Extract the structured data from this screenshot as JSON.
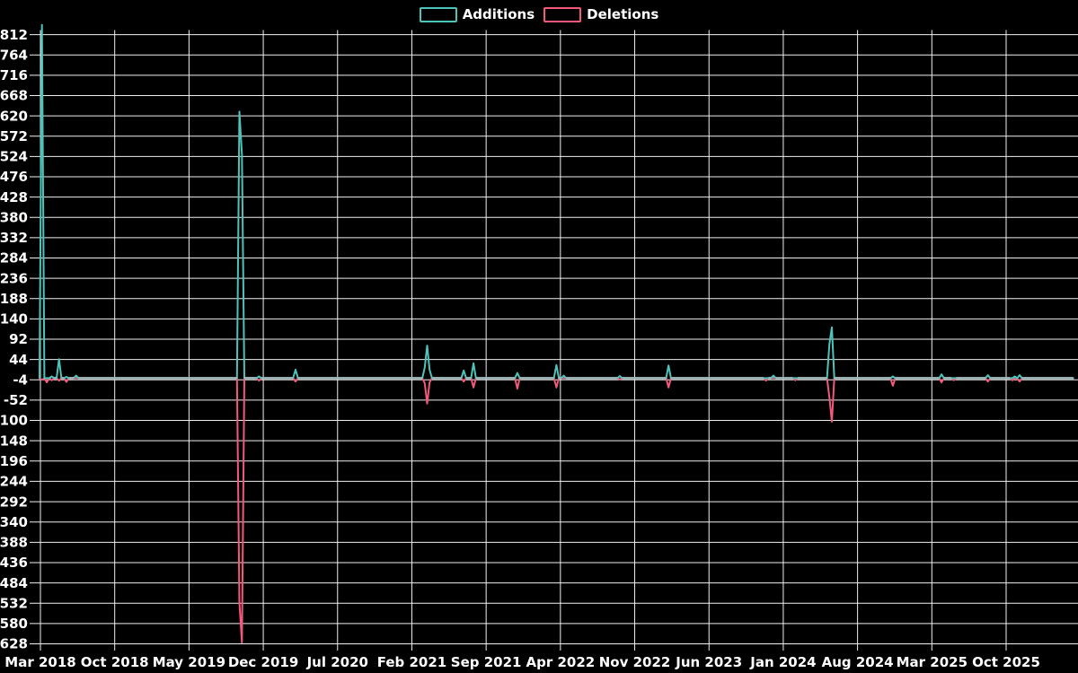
{
  "legend": {
    "items": [
      {
        "label": "Additions",
        "color": "#4cc4bc"
      },
      {
        "label": "Deletions",
        "color": "#f4587b"
      }
    ]
  },
  "chart_data": {
    "type": "line",
    "title": "",
    "xlabel": "",
    "ylabel": "",
    "legend_position": "top",
    "grid": true,
    "background_color": "#000000",
    "text_color": "#ffffff",
    "grid_color": "#f0f0f0",
    "zero_line_color": "#9fb8ba",
    "x_axis": {
      "start_date": "2018-03-04",
      "end_date": "2026-04-19",
      "tick_labels": [
        "Mar 2018",
        "Oct 2018",
        "May 2019",
        "Dec 2019",
        "Jul 2020",
        "Feb 2021",
        "Sep 2021",
        "Apr 2022",
        "Nov 2022",
        "Jun 2023",
        "Jan 2024",
        "Aug 2024",
        "Mar 2025",
        "Oct 2025"
      ]
    },
    "y_axis": {
      "min": -628,
      "max": 812,
      "tick_step": 48,
      "tick_labels": [
        "812",
        "764",
        "716",
        "668",
        "620",
        "572",
        "524",
        "476",
        "428",
        "380",
        "332",
        "284",
        "236",
        "188",
        "140",
        "92",
        "44",
        "-4",
        "-52",
        "-100",
        "-148",
        "-196",
        "-244",
        "-292",
        "-340",
        "-388",
        "-436",
        "-484",
        "-532",
        "-580",
        "-628"
      ]
    },
    "series": [
      {
        "name": "Additions",
        "color": "#4cc4bc"
      },
      {
        "name": "Deletions",
        "color": "#f4587b"
      }
    ],
    "points": [
      {
        "date": "2018-03-11",
        "additions": 835,
        "deletions": -4
      },
      {
        "date": "2018-03-25",
        "additions": 0,
        "deletions": -10
      },
      {
        "date": "2018-04-08",
        "additions": 4,
        "deletions": -5
      },
      {
        "date": "2018-04-29",
        "additions": 45,
        "deletions": -6
      },
      {
        "date": "2018-05-20",
        "additions": 3,
        "deletions": -9
      },
      {
        "date": "2018-06-17",
        "additions": 6,
        "deletions": 0
      },
      {
        "date": "2019-09-29",
        "additions": 630,
        "deletions": -531
      },
      {
        "date": "2019-10-06",
        "additions": 529,
        "deletions": -625
      },
      {
        "date": "2019-11-24",
        "additions": 4,
        "deletions": -6
      },
      {
        "date": "2020-03-08",
        "additions": 20,
        "deletions": -8
      },
      {
        "date": "2021-03-14",
        "additions": 25,
        "deletions": -12
      },
      {
        "date": "2021-03-21",
        "additions": 77,
        "deletions": -60
      },
      {
        "date": "2021-03-28",
        "additions": 20,
        "deletions": -10
      },
      {
        "date": "2021-07-04",
        "additions": 18,
        "deletions": -8
      },
      {
        "date": "2021-08-01",
        "additions": 35,
        "deletions": -22
      },
      {
        "date": "2021-12-05",
        "additions": 12,
        "deletions": -25
      },
      {
        "date": "2022-03-27",
        "additions": 31,
        "deletions": -22
      },
      {
        "date": "2022-04-17",
        "additions": 6,
        "deletions": 0
      },
      {
        "date": "2022-09-25",
        "additions": 5,
        "deletions": -3
      },
      {
        "date": "2023-02-12",
        "additions": 30,
        "deletions": -22
      },
      {
        "date": "2023-11-19",
        "additions": 0,
        "deletions": -6
      },
      {
        "date": "2023-12-10",
        "additions": 6,
        "deletions": 0
      },
      {
        "date": "2024-02-11",
        "additions": 0,
        "deletions": -5
      },
      {
        "date": "2024-05-19",
        "additions": 81,
        "deletions": -46
      },
      {
        "date": "2024-05-26",
        "additions": 120,
        "deletions": -103
      },
      {
        "date": "2024-11-17",
        "additions": 4,
        "deletions": -18
      },
      {
        "date": "2025-04-06",
        "additions": 9,
        "deletions": -10
      },
      {
        "date": "2025-05-11",
        "additions": 0,
        "deletions": -5
      },
      {
        "date": "2025-08-17",
        "additions": 7,
        "deletions": -8
      },
      {
        "date": "2025-10-26",
        "additions": 0,
        "deletions": -5
      },
      {
        "date": "2025-11-02",
        "additions": 4,
        "deletions": 0
      },
      {
        "date": "2025-11-16",
        "additions": 7,
        "deletions": -8
      }
    ]
  }
}
